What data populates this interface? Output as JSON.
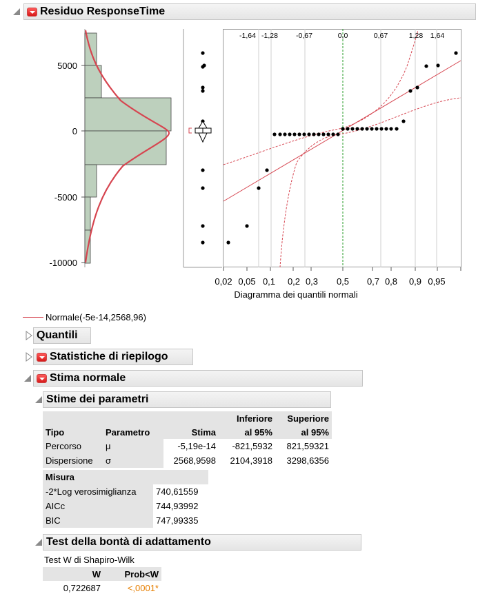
{
  "report": {
    "title": "Residuo ResponseTime",
    "legend_label": "Normale(-5e-14,2568,96)"
  },
  "plot": {
    "y_ticks": [
      "5000",
      "0",
      "-5000",
      "-10000"
    ],
    "quantile_top_ticks": [
      "-1,64",
      "-1,28",
      "-0,67",
      "0,0",
      "0,67",
      "1,28",
      "1,64"
    ],
    "prob_ticks": [
      "0,02",
      "0,05",
      "0,1",
      "0,2",
      "0,3",
      "0,5",
      "0,7",
      "0,8",
      "0,9",
      "0,95"
    ],
    "xlabel": "Diagramma dei quantili normali",
    "colors": {
      "hist_fill": "#bdd0bd",
      "curve": "#d64550",
      "ref_green": "#2a9d2a"
    }
  },
  "sections": {
    "quantili": "Quantili",
    "statistiche": "Statistiche di riepilogo",
    "stima_normale": "Stima normale",
    "stime_parametri": "Stime dei parametri",
    "test": "Test della bontà di adattamento"
  },
  "params_table": {
    "headers": {
      "tipo": "Tipo",
      "parametro": "Parametro",
      "stima": "Stima",
      "inferiore_1": "Inferiore",
      "inferiore_2": "al 95%",
      "superiore_1": "Superiore",
      "superiore_2": "al 95%"
    },
    "rows": [
      {
        "tipo": "Percorso",
        "parametro": "μ",
        "stima": "-5,19e-14",
        "inferiore": "-821,5932",
        "superiore": "821,59321"
      },
      {
        "tipo": "Dispersione",
        "parametro": "σ",
        "stima": "2568,9598",
        "inferiore": "2104,3918",
        "superiore": "3298,6356"
      }
    ]
  },
  "measures_table": {
    "header": "Misura",
    "rows": [
      {
        "label": "-2*Log verosimiglianza",
        "value": "740,61559"
      },
      {
        "label": "AICc",
        "value": "744,93992"
      },
      {
        "label": "BIC",
        "value": "747,99335"
      }
    ]
  },
  "gof": {
    "test_name": "Test W di Shapiro-Wilk",
    "headers": {
      "w": "W",
      "prob": "Prob<W"
    },
    "w": "0,722687",
    "prob": "<,0001*",
    "prob_color": "#e67e00"
  }
}
